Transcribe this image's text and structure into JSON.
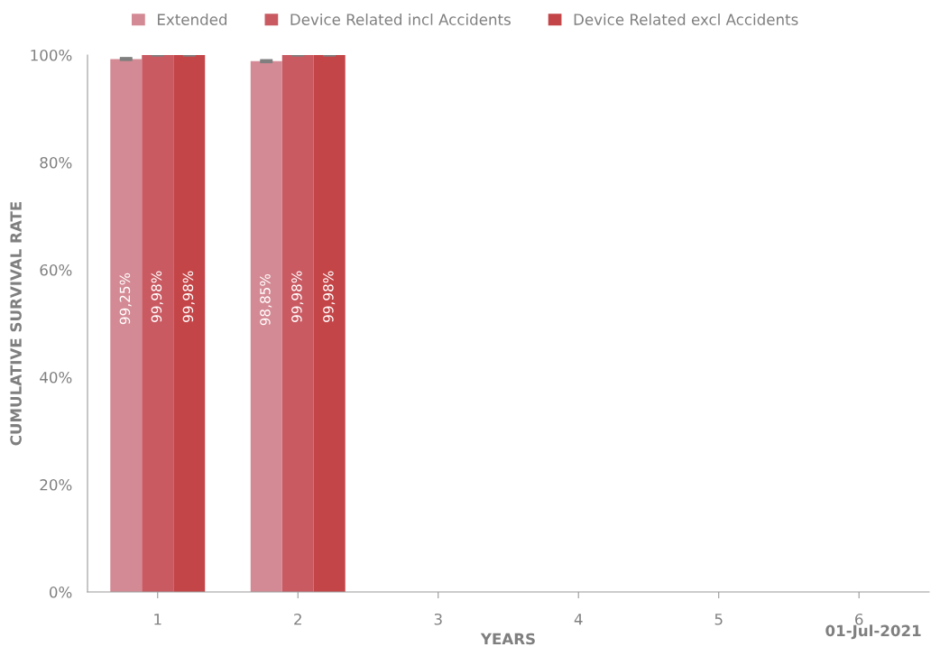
{
  "chart_data": {
    "type": "bar",
    "xlabel": "YEARS",
    "ylabel": "CUMULATIVE SURVIVAL RATE",
    "categories": [
      "1",
      "2",
      "3",
      "4",
      "5",
      "6"
    ],
    "series": [
      {
        "name": "Extended",
        "color": "#d48a94",
        "values": [
          99.25,
          98.85,
          null,
          null,
          null,
          null
        ],
        "errors": [
          0.15,
          0.15,
          null,
          null,
          null,
          null
        ],
        "value_labels": [
          "99,25%",
          "98,85%",
          null,
          null,
          null,
          null
        ]
      },
      {
        "name": "Device Related incl Accidents",
        "color": "#c95a62",
        "values": [
          99.98,
          99.98,
          null,
          null,
          null,
          null
        ],
        "errors": [
          0.02,
          0.02,
          null,
          null,
          null,
          null
        ],
        "value_labels": [
          "99,98%",
          "99,98%",
          null,
          null,
          null,
          null
        ]
      },
      {
        "name": "Device Related excl Accidents",
        "color": "#c44548",
        "values": [
          99.98,
          99.98,
          null,
          null,
          null,
          null
        ],
        "errors": [
          0.02,
          0.02,
          null,
          null,
          null,
          null
        ],
        "value_labels": [
          "99,98%",
          "99,98%",
          null,
          null,
          null,
          null
        ]
      }
    ],
    "ylim": [
      0,
      100
    ],
    "yticks": [
      {
        "value": 0,
        "label": "0%"
      },
      {
        "value": 20,
        "label": "20%"
      },
      {
        "value": 40,
        "label": "40%"
      },
      {
        "value": 60,
        "label": "60%"
      },
      {
        "value": 80,
        "label": "80%"
      },
      {
        "value": 100,
        "label": "100%"
      }
    ],
    "legend": "top",
    "grid": false,
    "annotations": [
      "01-Jul-2021"
    ]
  }
}
